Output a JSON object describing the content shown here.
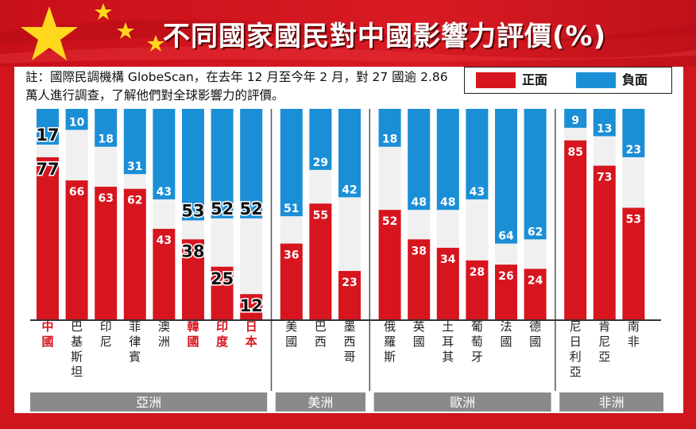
{
  "title": "不同國家國民對中國影響力評價(%)",
  "note": "註：國際民調機構 GlobeScan，在去年 12 月至今年 2 月，對 27 國逾 2.86 萬人進行調查，了解他們對全球影響力的評價。",
  "legend": {
    "positive_label": "正面",
    "negative_label": "負面"
  },
  "colors": {
    "positive": "#d7151e",
    "negative": "#1b8fd6",
    "neutral": "#f0f0f0",
    "highlight_label": "#d7151e",
    "region_bar": "#8a8a8a"
  },
  "chart_data": {
    "type": "bar",
    "stacked": true,
    "ylim": [
      0,
      100
    ],
    "categories": [
      "中國",
      "巴基斯坦",
      "印尼",
      "菲律賓",
      "澳洲",
      "韓國",
      "印度",
      "日本",
      "美國",
      "巴西",
      "墨西哥",
      "俄羅斯",
      "英國",
      "土耳其",
      "葡萄牙",
      "法國",
      "德國",
      "尼日利亞",
      "肯尼亞",
      "南非"
    ],
    "series": [
      {
        "name": "正面",
        "values": [
          77,
          66,
          63,
          62,
          43,
          38,
          25,
          12,
          36,
          55,
          23,
          52,
          38,
          34,
          28,
          26,
          24,
          85,
          73,
          53
        ]
      },
      {
        "name": "負面",
        "values": [
          17,
          10,
          18,
          31,
          43,
          53,
          52,
          52,
          51,
          29,
          42,
          18,
          48,
          48,
          43,
          64,
          62,
          9,
          13,
          23
        ]
      }
    ],
    "highlighted_categories": [
      "中國",
      "韓國",
      "印度",
      "日本"
    ],
    "large_label_categories": [
      "中國",
      "韓國",
      "印度",
      "日本"
    ],
    "regions": [
      {
        "name": "亞洲",
        "count": 8
      },
      {
        "name": "美洲",
        "count": 3
      },
      {
        "name": "歐洲",
        "count": 6
      },
      {
        "name": "非洲",
        "count": 3
      }
    ]
  }
}
